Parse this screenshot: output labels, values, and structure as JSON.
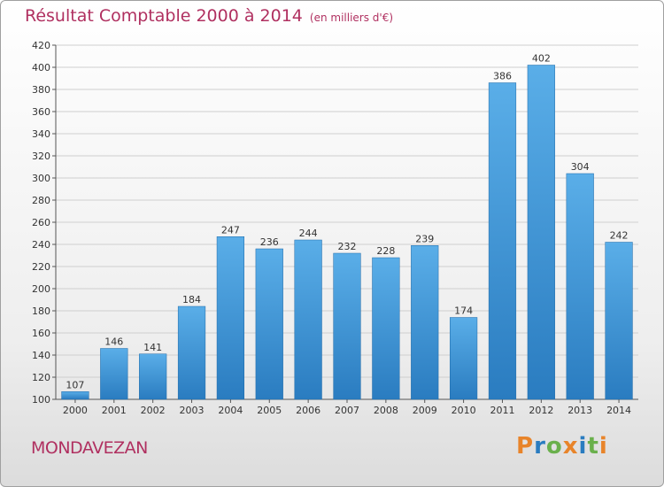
{
  "header": {
    "title": "Résultat Comptable 2000 à 2014",
    "subtitle": "(en milliers d'€)"
  },
  "footer": {
    "location": "MONDAVEZAN",
    "logo_text": "Proxiti"
  },
  "colors": {
    "title": "#b03060",
    "bar_top": "#5aaee8",
    "bar_bottom": "#2a7cc0",
    "logo_letters": [
      "#e8842a",
      "#2a7cc0",
      "#6ab04c",
      "#e8842a",
      "#2a7cc0",
      "#6ab04c",
      "#e8842a"
    ]
  },
  "chart_data": {
    "type": "bar",
    "title": "Résultat Comptable 2000 à 2014",
    "subtitle": "(en milliers d'€)",
    "xlabel": "",
    "ylabel": "",
    "categories": [
      "2000",
      "2001",
      "2002",
      "2003",
      "2004",
      "2005",
      "2006",
      "2007",
      "2008",
      "2009",
      "2010",
      "2011",
      "2012",
      "2013",
      "2014"
    ],
    "values": [
      107,
      146,
      141,
      184,
      247,
      236,
      244,
      232,
      228,
      239,
      174,
      386,
      402,
      304,
      242
    ],
    "ylim": [
      100,
      420
    ],
    "yticks": [
      100,
      120,
      140,
      160,
      180,
      200,
      220,
      240,
      260,
      280,
      300,
      320,
      340,
      360,
      380,
      400,
      420
    ],
    "grid": true,
    "legend": "none"
  }
}
